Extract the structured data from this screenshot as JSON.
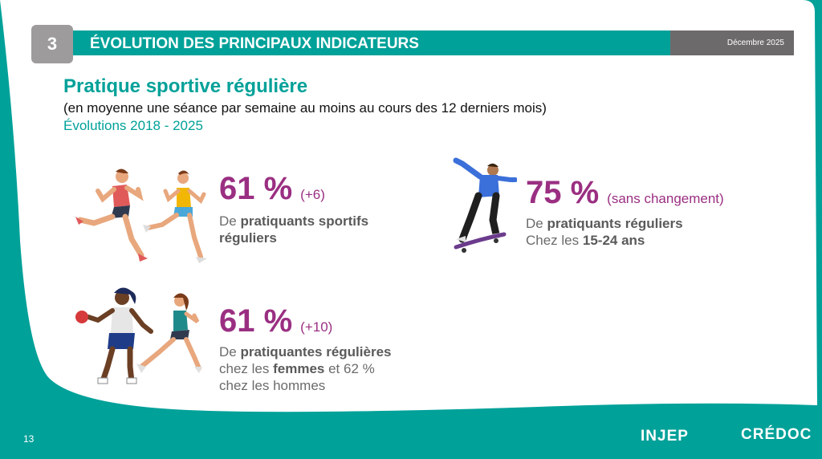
{
  "header": {
    "section_number": "3",
    "title": "ÉVOLUTION DES PRINCIPAUX INDICATEURS",
    "date": "Décembre 2025"
  },
  "heading": {
    "title": "Pratique sportive régulière",
    "subtitle": "(en moyenne une séance par semaine au moins au cours des 12 derniers mois)",
    "period": "Évolutions 2018 - 2025"
  },
  "stats": [
    {
      "percent": "61 %",
      "change": "(+6)",
      "line1_pre": "De ",
      "line1_bold": "pratiquants sportifs",
      "line2_bold": "réguliers"
    },
    {
      "percent": "75 %",
      "change": "(sans changement)",
      "line1_pre": "De ",
      "line1_bold": "pratiquants réguliers",
      "line2_pre": "Chez les ",
      "line2_bold": "15-24 ans"
    },
    {
      "percent": "61 %",
      "change": "(+10)",
      "line1_pre": "De ",
      "line1_bold": "pratiquantes régulières",
      "line2_pre": "chez les ",
      "line2_bold": "femmes",
      "line2_post": " et 62 %",
      "line3": "chez les hommes"
    }
  ],
  "footer": {
    "page_number": "13",
    "logo_left": "INJEP",
    "logo_right": "CRÉDOC"
  },
  "colors": {
    "teal": "#00a199",
    "purple": "#9a2f82",
    "grey_dark": "#6d6a6b",
    "grey_box": "#9e9b9c"
  }
}
